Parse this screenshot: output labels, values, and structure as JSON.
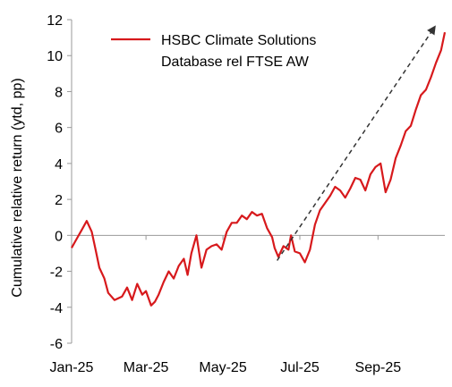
{
  "chart_data": {
    "type": "line",
    "title": "",
    "xlabel": "",
    "ylabel": "Cumulative relative return (ytd, pp)",
    "ylim": [
      -6,
      12
    ],
    "yticks": [
      "-6",
      "-4",
      "-2",
      "0",
      "2",
      "4",
      "6",
      "8",
      "10",
      "12"
    ],
    "xlim": [
      "2025-01-01",
      "2025-10-24"
    ],
    "xticks": [
      {
        "date": "2025-01-01",
        "label": "Jan-25"
      },
      {
        "date": "2025-03-01",
        "label": "Mar-25"
      },
      {
        "date": "2025-05-01",
        "label": "May-25"
      },
      {
        "date": "2025-07-01",
        "label": "Jul-25"
      },
      {
        "date": "2025-09-01",
        "label": "Sep-25"
      }
    ],
    "legend": {
      "placement": "top-left",
      "lines": [
        "HSBC Climate Solutions",
        "Database rel FTSE AW"
      ]
    },
    "grid": false,
    "colors": {
      "series": "#d7191c",
      "arrow": "#333333",
      "axis": "#999999"
    },
    "series": [
      {
        "name": "HSBC Climate Solutions Database rel FTSE AW",
        "x": [
          "2025-01-01",
          "2025-01-05",
          "2025-01-09",
          "2025-01-13",
          "2025-01-17",
          "2025-01-20",
          "2025-01-23",
          "2025-01-27",
          "2025-01-30",
          "2025-02-04",
          "2025-02-10",
          "2025-02-14",
          "2025-02-18",
          "2025-02-22",
          "2025-02-26",
          "2025-03-01",
          "2025-03-05",
          "2025-03-08",
          "2025-03-11",
          "2025-03-15",
          "2025-03-19",
          "2025-03-23",
          "2025-03-27",
          "2025-03-31",
          "2025-04-03",
          "2025-04-06",
          "2025-04-10",
          "2025-04-14",
          "2025-04-18",
          "2025-04-22",
          "2025-04-26",
          "2025-04-30",
          "2025-05-04",
          "2025-05-08",
          "2025-05-12",
          "2025-05-16",
          "2025-05-20",
          "2025-05-24",
          "2025-05-28",
          "2025-06-01",
          "2025-06-05",
          "2025-06-09",
          "2025-06-11",
          "2025-06-14",
          "2025-06-18",
          "2025-06-22",
          "2025-06-24",
          "2025-06-27",
          "2025-07-01",
          "2025-07-05",
          "2025-07-09",
          "2025-07-13",
          "2025-07-17",
          "2025-07-21",
          "2025-07-25",
          "2025-07-29",
          "2025-08-02",
          "2025-08-06",
          "2025-08-10",
          "2025-08-14",
          "2025-08-18",
          "2025-08-22",
          "2025-08-26",
          "2025-08-30",
          "2025-09-03",
          "2025-09-07",
          "2025-09-11",
          "2025-09-15",
          "2025-09-19",
          "2025-09-23",
          "2025-09-27",
          "2025-10-01",
          "2025-10-05",
          "2025-10-09",
          "2025-10-13",
          "2025-10-17",
          "2025-10-21",
          "2025-10-24"
        ],
        "y": [
          -0.7,
          -0.2,
          0.3,
          0.8,
          0.2,
          -0.8,
          -1.8,
          -2.4,
          -3.2,
          -3.6,
          -3.4,
          -2.9,
          -3.6,
          -2.7,
          -3.3,
          -3.1,
          -3.9,
          -3.7,
          -3.3,
          -2.6,
          -2.0,
          -2.4,
          -1.7,
          -1.3,
          -2.2,
          -1.0,
          0.0,
          -1.8,
          -0.8,
          -0.6,
          -0.5,
          -0.8,
          0.2,
          0.7,
          0.7,
          1.1,
          0.9,
          1.3,
          1.1,
          1.2,
          0.4,
          -0.1,
          -0.7,
          -1.2,
          -0.6,
          -0.8,
          0.0,
          -0.9,
          -1.0,
          -1.5,
          -0.8,
          0.6,
          1.4,
          1.8,
          2.2,
          2.7,
          2.5,
          2.1,
          2.6,
          3.2,
          3.1,
          2.5,
          3.4,
          3.8,
          4.0,
          2.4,
          3.1,
          4.3,
          5.0,
          5.8,
          6.1,
          7.0,
          7.8,
          8.1,
          8.8,
          9.6,
          10.3,
          11.3
        ]
      }
    ],
    "annotations": [
      {
        "type": "arrow",
        "style": "dashed",
        "from": {
          "date": "2025-06-13",
          "value": -1.4
        },
        "to": {
          "date": "2025-10-16",
          "value": 11.6
        }
      }
    ]
  }
}
